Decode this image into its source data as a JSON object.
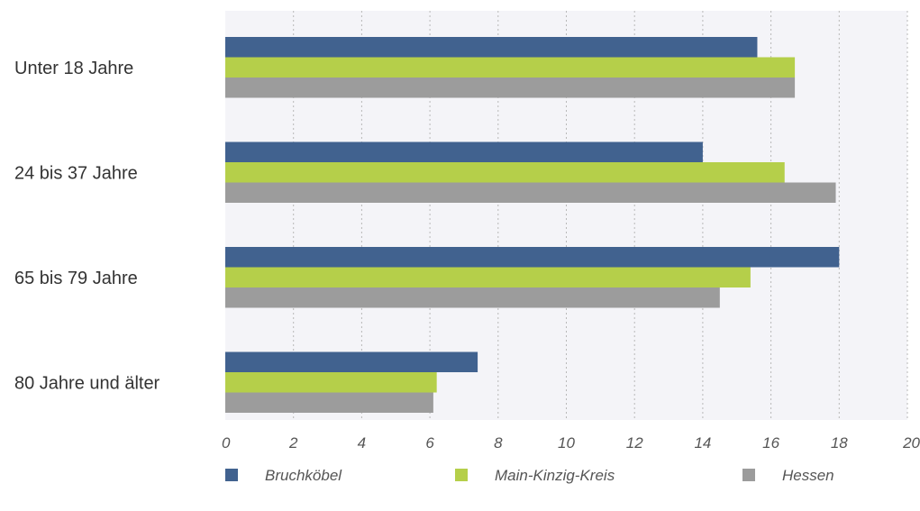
{
  "chart_data": {
    "type": "bar",
    "orientation": "horizontal",
    "categories": [
      "Unter 18 Jahre",
      "24 bis 37 Jahre",
      "65 bis 79 Jahre",
      "80 Jahre und älter"
    ],
    "series": [
      {
        "name": "Bruchköbel",
        "color": "#41628f",
        "values": [
          15.6,
          14.0,
          18.0,
          7.4
        ]
      },
      {
        "name": "Main-Kinzig-Kreis",
        "color": "#b5cf4a",
        "values": [
          16.7,
          16.4,
          15.4,
          6.2
        ]
      },
      {
        "name": "Hessen",
        "color": "#9c9c9c",
        "values": [
          16.7,
          17.9,
          14.5,
          6.1
        ]
      }
    ],
    "xlim": [
      0,
      20
    ],
    "xticks": [
      0,
      2,
      4,
      6,
      8,
      10,
      12,
      14,
      16,
      18,
      20
    ],
    "grid": true,
    "legend": "bottom",
    "plot_background": "#f4f4f8"
  }
}
